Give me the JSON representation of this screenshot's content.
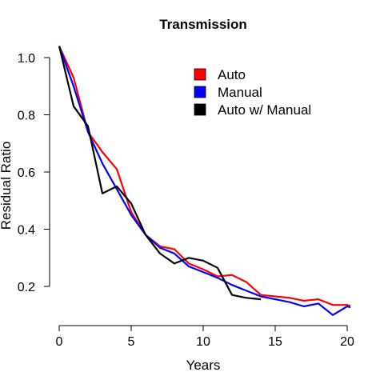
{
  "chart_data": {
    "type": "line",
    "title": "Transmission",
    "xlabel": "Years",
    "ylabel": "Residual Ratio",
    "xlim": [
      0,
      21
    ],
    "ylim": [
      0.1,
      1.05
    ],
    "xticks": [
      0,
      5,
      10,
      15,
      20
    ],
    "xtick_labels": [
      "0",
      "5",
      "10",
      "15",
      "20"
    ],
    "yticks": [
      0.2,
      0.4,
      0.6,
      0.8,
      1.0
    ],
    "ytick_labels": [
      "0.2",
      "0.4",
      "0.6",
      "0.8",
      "1.0"
    ],
    "grid": false,
    "legend": "top-right",
    "series": [
      {
        "name": "Auto",
        "color": "#ff0000",
        "x": [
          0,
          1,
          2,
          3,
          4,
          5,
          6,
          7,
          8,
          9,
          10,
          11,
          12,
          13,
          14,
          15,
          16,
          17,
          18,
          19,
          20,
          21
        ],
        "y": [
          1.04,
          0.93,
          0.74,
          0.67,
          0.61,
          0.46,
          0.38,
          0.34,
          0.33,
          0.28,
          0.26,
          0.235,
          0.24,
          0.215,
          0.17,
          0.165,
          0.16,
          0.15,
          0.155,
          0.135,
          0.135,
          0.12
        ]
      },
      {
        "name": "Manual",
        "color": "#0000ff",
        "x": [
          0,
          1,
          2,
          3,
          4,
          5,
          6,
          7,
          8,
          9,
          10,
          11,
          12,
          13,
          14,
          15,
          16,
          17,
          18,
          19,
          20,
          21
        ],
        "y": [
          1.04,
          0.9,
          0.74,
          0.63,
          0.54,
          0.45,
          0.38,
          0.335,
          0.315,
          0.27,
          0.25,
          0.23,
          0.205,
          0.185,
          0.165,
          0.155,
          0.145,
          0.13,
          0.14,
          0.1,
          0.13,
          0.115
        ]
      },
      {
        "name": "Auto w/ Manual",
        "color": "#000000",
        "x": [
          0,
          1,
          2,
          3,
          4,
          5,
          6,
          7,
          8,
          9,
          10,
          11,
          12,
          13,
          14
        ],
        "y": [
          1.04,
          0.83,
          0.76,
          0.525,
          0.55,
          0.49,
          0.38,
          0.315,
          0.28,
          0.3,
          0.29,
          0.265,
          0.17,
          0.16,
          0.155
        ]
      }
    ]
  }
}
